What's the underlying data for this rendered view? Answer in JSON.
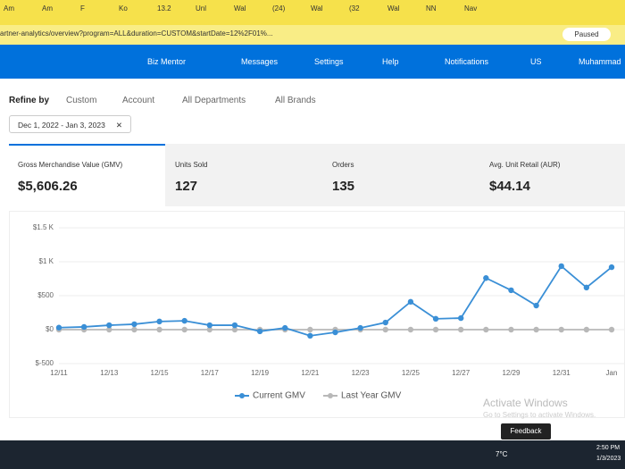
{
  "browser": {
    "tabs": [
      "Am",
      "Am",
      "F",
      "Ko",
      "13.2",
      "Unl",
      "Wal",
      "(24)",
      "Wal",
      "(32",
      "Wal",
      "NN",
      "Nav"
    ],
    "url": "artner-analytics/overview?program=ALL&duration=CUSTOM&startDate=12%2F01%...",
    "paused": "Paused"
  },
  "nav": {
    "items": [
      "Biz Mentor",
      "Messages",
      "Settings",
      "Help",
      "Notifications",
      "US",
      "Muhammad"
    ]
  },
  "filters": {
    "label": "Refine by",
    "options": [
      "Custom",
      "Account",
      "All Departments",
      "All Brands"
    ],
    "date_range": "Dec 1, 2022 - Jan 3, 2023"
  },
  "kpis": [
    {
      "label": "Gross Merchandise Value (GMV)",
      "value": "$5,606.26"
    },
    {
      "label": "Units Sold",
      "value": "127"
    },
    {
      "label": "Orders",
      "value": "135"
    },
    {
      "label": "Avg. Unit Retail (AUR)",
      "value": "$44.14"
    }
  ],
  "chart_data": {
    "type": "line",
    "categories": [
      "12/11",
      null,
      "12/13",
      null,
      "12/15",
      null,
      "12/17",
      null,
      "12/19",
      null,
      "12/21",
      null,
      "12/23",
      null,
      "12/25",
      null,
      "12/27",
      null,
      "12/29",
      null,
      "12/31",
      null,
      "Jan"
    ],
    "series": [
      {
        "name": "Current GMV",
        "color": "#3a8fd6",
        "values": [
          30,
          40,
          65,
          80,
          120,
          130,
          65,
          65,
          -25,
          25,
          -90,
          -40,
          25,
          105,
          410,
          160,
          170,
          760,
          580,
          355,
          935,
          620,
          920
        ]
      },
      {
        "name": "Last Year GMV",
        "color": "#b8b8b8",
        "values": [
          0,
          0,
          0,
          0,
          0,
          0,
          0,
          0,
          0,
          0,
          0,
          0,
          0,
          0,
          0,
          0,
          0,
          0,
          0,
          0,
          0,
          0,
          0
        ]
      }
    ],
    "ylim": [
      -500,
      1500
    ],
    "yticks": [
      {
        "value": -500,
        "label": "$-500"
      },
      {
        "value": 0,
        "label": "$0"
      },
      {
        "value": 500,
        "label": "$500"
      },
      {
        "value": 1000,
        "label": "$1 K"
      },
      {
        "value": 1500,
        "label": "$1.5 K"
      }
    ],
    "grid": true
  },
  "overlay": {
    "watermark": "Activate Windows",
    "watermark_sub": "Go to Settings to activate Windows.",
    "feedback": "Feedback"
  },
  "taskbar": {
    "temp": "7°C",
    "time": "2:50 PM",
    "date": "1/3/2023"
  }
}
